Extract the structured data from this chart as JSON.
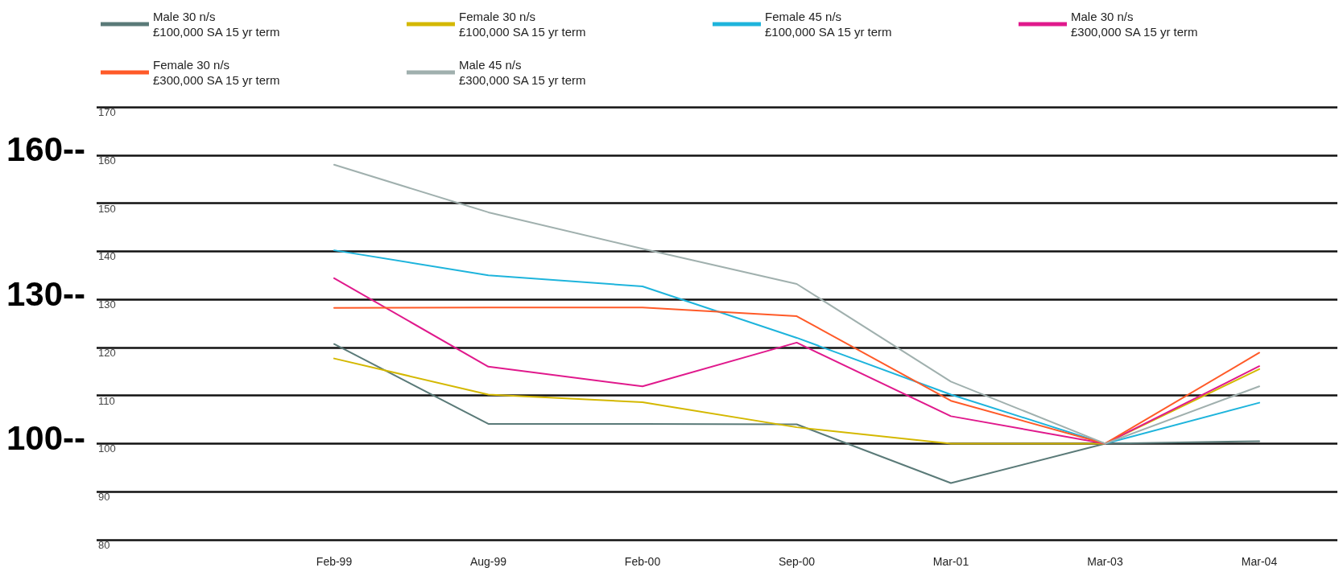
{
  "chart_data": {
    "type": "line",
    "categories": [
      "Feb-99",
      "Aug-99",
      "Feb-00",
      "Sep-00",
      "Mar-01",
      "Mar-03",
      "Mar-04"
    ],
    "series": [
      {
        "name": "Male 30 n/s\n£100,000 SA 15 yr term",
        "color": "#5a7a78",
        "values": [
          120.7,
          104.1,
          104.1,
          104,
          91.8,
          100,
          100.5
        ]
      },
      {
        "name": "Female 30 n/s\n£100,000 SA 15 yr term",
        "color": "#d4b800",
        "values": [
          117.7,
          110.2,
          108.6,
          103.4,
          100,
          100,
          115.5
        ]
      },
      {
        "name": "Female 45 n/s\n£100,000 SA 15 yr term",
        "color": "#1eb4dc",
        "values": [
          140.2,
          135,
          132.7,
          122,
          110.2,
          100,
          108.5
        ]
      },
      {
        "name": "Male 30 n/s\n£300,000 SA 15 yr term",
        "color": "#e0198c",
        "values": [
          134.4,
          116,
          111.9,
          121,
          105.7,
          100,
          116.1
        ]
      },
      {
        "name": "Female 30 n/s\n£300,000 SA 15 yr term",
        "color": "#ff5a28",
        "values": [
          128.2,
          128.3,
          128.3,
          126.5,
          108.9,
          100,
          118.9
        ]
      },
      {
        "name": "Male 45 n/s\n£300,000 SA 15 yr term",
        "color": "#a0b0ae",
        "values": [
          158,
          148.1,
          140.5,
          133.2,
          112.9,
          100,
          111.9
        ]
      }
    ],
    "ylim": [
      80,
      170
    ],
    "yticks": [
      80,
      90,
      100,
      110,
      120,
      130,
      140,
      150,
      160,
      170
    ],
    "grid": "y",
    "legend": "top",
    "marker": "none",
    "line_style": "solid",
    "annotations": [
      "160--",
      "130--",
      "100--"
    ]
  }
}
